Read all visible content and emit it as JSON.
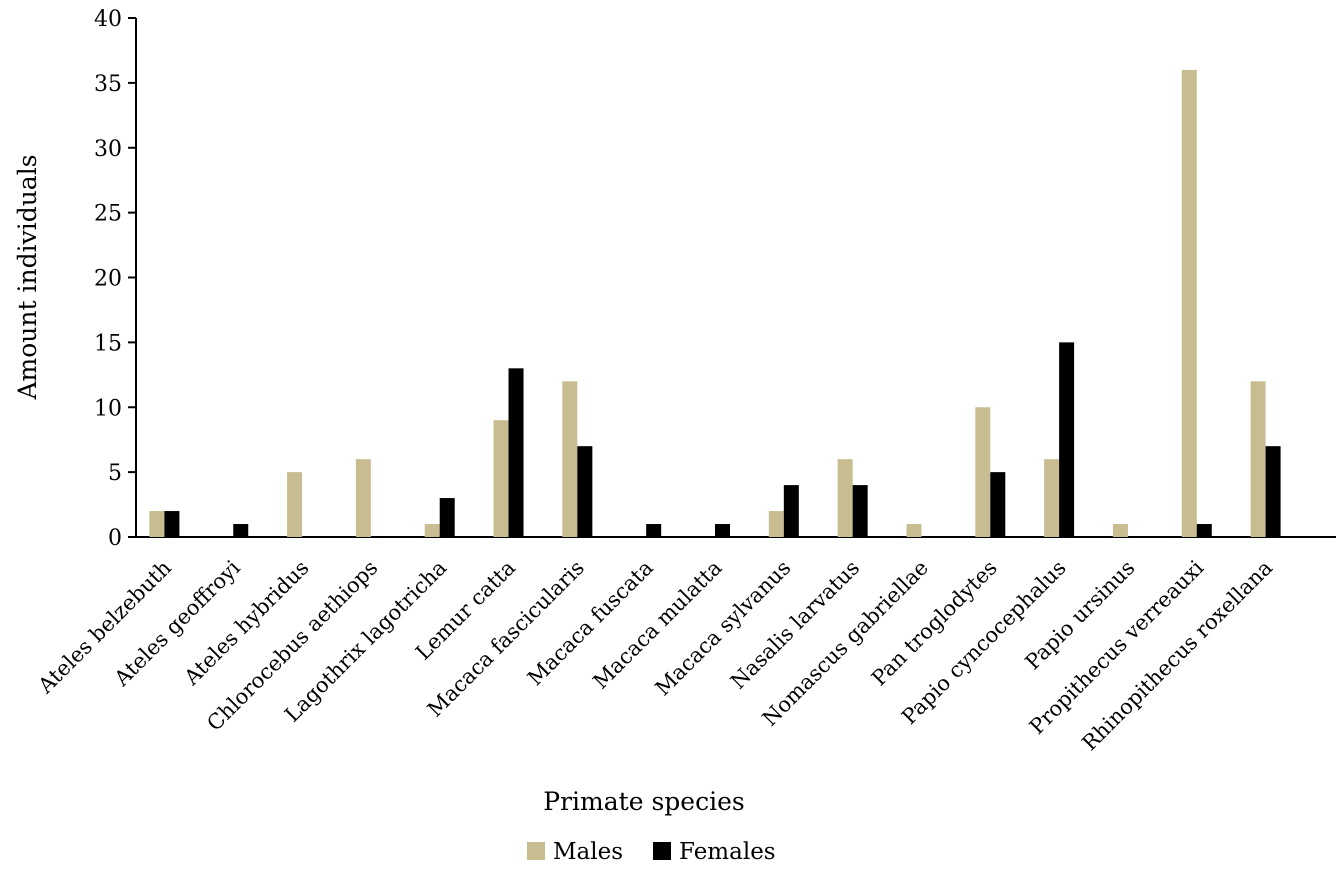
{
  "chart_data": {
    "type": "bar",
    "title": "",
    "xlabel": "Primate species",
    "ylabel": "Amount individuals",
    "ylim": [
      0,
      40
    ],
    "yticks": [
      0,
      5,
      10,
      15,
      20,
      25,
      30,
      35,
      40
    ],
    "grid": false,
    "legend_position": "bottom",
    "categories": [
      "Ateles belzebuth",
      "Ateles geoffroyi",
      "Ateles hybridus",
      "Chlorocebus aethiops",
      "Lagothrix lagotricha",
      "Lemur catta",
      "Macaca fascicularis",
      "Macaca fuscata",
      "Macaca mulatta",
      "Macaca sylvanus",
      "Nasalis larvatus",
      "Nomascus gabriellae",
      "Pan troglodytes",
      "Papio cyncocephalus",
      "Papio ursinus",
      "Propithecus verreauxi",
      "Rhinopithecus roxellana"
    ],
    "series": [
      {
        "name": "Males",
        "color": "#c8bd91",
        "values": [
          2,
          0,
          5,
          6,
          1,
          9,
          12,
          0,
          0,
          2,
          6,
          1,
          10,
          6,
          1,
          36,
          12
        ]
      },
      {
        "name": "Females",
        "color": "#000000",
        "values": [
          2,
          1,
          0,
          0,
          3,
          13,
          7,
          1,
          1,
          4,
          4,
          0,
          5,
          15,
          0,
          1,
          7
        ]
      }
    ]
  }
}
